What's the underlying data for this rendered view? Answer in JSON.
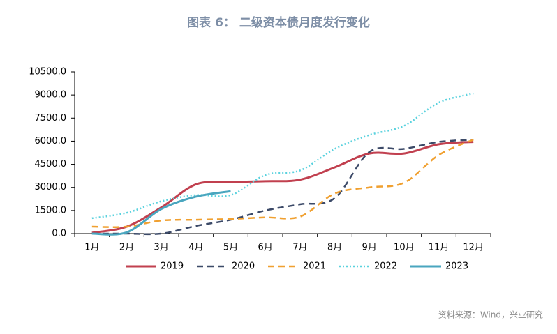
{
  "chart_data": {
    "type": "line",
    "title": "图表 6： 二级资本债月度发行变化",
    "source": "资料来源：Wind，兴业研究",
    "categories": [
      "1月",
      "2月",
      "3月",
      "4月",
      "5月",
      "6月",
      "7月",
      "8月",
      "9月",
      "10月",
      "11月",
      "12月"
    ],
    "series": [
      {
        "name": "2019",
        "color": "#c1404f",
        "style": "solid",
        "values": [
          50,
          450,
          1700,
          3200,
          3350,
          3400,
          3500,
          4300,
          5200,
          5200,
          5800,
          5950
        ]
      },
      {
        "name": "2020",
        "color": "#3c4a68",
        "style": "dashed",
        "values": [
          0,
          0,
          0,
          500,
          900,
          1500,
          1900,
          2300,
          5300,
          5500,
          5950,
          6100
        ]
      },
      {
        "name": "2021",
        "color": "#f0a030",
        "style": "dashed",
        "values": [
          450,
          450,
          850,
          900,
          950,
          1050,
          1100,
          2600,
          3000,
          3300,
          5100,
          6100
        ]
      },
      {
        "name": "2022",
        "color": "#5ad2de",
        "style": "dotted",
        "values": [
          1000,
          1350,
          2100,
          2500,
          2500,
          3800,
          4100,
          5500,
          6400,
          7000,
          8500,
          9100
        ]
      },
      {
        "name": "2023",
        "color": "#4aa6bf",
        "style": "solid",
        "values": [
          0,
          80,
          1600,
          2400,
          2750,
          null,
          null,
          null,
          null,
          null,
          null,
          null
        ]
      }
    ],
    "ylim": [
      0,
      10500
    ],
    "yticks": [
      {
        "value": 0,
        "label": "0.0"
      },
      {
        "value": 1500,
        "label": "1500.0"
      },
      {
        "value": 3000,
        "label": "3000.0"
      },
      {
        "value": 4500,
        "label": "4500.0"
      },
      {
        "value": 6000,
        "label": "6000.0"
      },
      {
        "value": 7500,
        "label": "7500.0"
      },
      {
        "value": 9000,
        "label": "9000.0"
      },
      {
        "value": 10500,
        "label": "10500.0"
      }
    ],
    "grid": false,
    "legend": "bottom"
  }
}
